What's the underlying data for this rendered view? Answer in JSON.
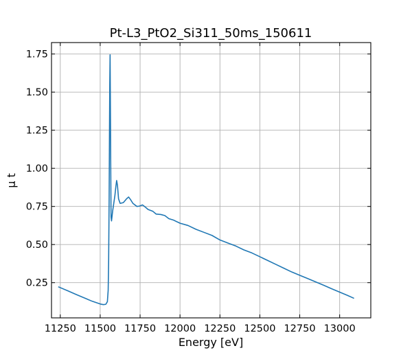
{
  "chart_data": {
    "type": "line",
    "title": "Pt-L3_PtO2_Si311_50ms_150611",
    "xlabel": "Energy [eV]",
    "ylabel": "μ t",
    "xlim": [
      11195,
      13195
    ],
    "ylim": [
      0.019,
      1.825
    ],
    "x_ticks": [
      11250,
      11500,
      11750,
      12000,
      12250,
      12500,
      12750,
      13000
    ],
    "x_tick_labels": [
      "11250",
      "11500",
      "11750",
      "12000",
      "12250",
      "12500",
      "12750",
      "13000"
    ],
    "y_ticks": [
      0.25,
      0.5,
      0.75,
      1.0,
      1.25,
      1.5,
      1.75
    ],
    "y_tick_labels": [
      "0.25",
      "0.50",
      "0.75",
      "1.00",
      "1.25",
      "1.50",
      "1.75"
    ],
    "grid": true,
    "tick_direction": "in",
    "series": [
      {
        "color": "#1f77b4",
        "points": [
          [
            11237,
            0.223
          ],
          [
            11300,
            0.195
          ],
          [
            11350,
            0.172
          ],
          [
            11400,
            0.15
          ],
          [
            11450,
            0.128
          ],
          [
            11500,
            0.11
          ],
          [
            11520,
            0.106
          ],
          [
            11535,
            0.108
          ],
          [
            11545,
            0.125
          ],
          [
            11550,
            0.2
          ],
          [
            11553,
            0.4
          ],
          [
            11556,
            0.8
          ],
          [
            11558,
            1.2
          ],
          [
            11560,
            1.55
          ],
          [
            11562,
            1.745
          ],
          [
            11565,
            1.2
          ],
          [
            11568,
            0.68
          ],
          [
            11571,
            0.655
          ],
          [
            11578,
            0.72
          ],
          [
            11585,
            0.77
          ],
          [
            11592,
            0.82
          ],
          [
            11598,
            0.88
          ],
          [
            11603,
            0.92
          ],
          [
            11608,
            0.89
          ],
          [
            11615,
            0.8
          ],
          [
            11625,
            0.77
          ],
          [
            11645,
            0.775
          ],
          [
            11665,
            0.8
          ],
          [
            11678,
            0.812
          ],
          [
            11690,
            0.795
          ],
          [
            11705,
            0.77
          ],
          [
            11730,
            0.75
          ],
          [
            11745,
            0.752
          ],
          [
            11765,
            0.76
          ],
          [
            11780,
            0.748
          ],
          [
            11800,
            0.73
          ],
          [
            11830,
            0.718
          ],
          [
            11850,
            0.7
          ],
          [
            11880,
            0.697
          ],
          [
            11905,
            0.69
          ],
          [
            11930,
            0.67
          ],
          [
            11960,
            0.66
          ],
          [
            12000,
            0.64
          ],
          [
            12050,
            0.625
          ],
          [
            12100,
            0.6
          ],
          [
            12150,
            0.58
          ],
          [
            12200,
            0.56
          ],
          [
            12250,
            0.53
          ],
          [
            12300,
            0.51
          ],
          [
            12350,
            0.49
          ],
          [
            12400,
            0.465
          ],
          [
            12450,
            0.445
          ],
          [
            12500,
            0.42
          ],
          [
            12550,
            0.395
          ],
          [
            12600,
            0.37
          ],
          [
            12650,
            0.345
          ],
          [
            12700,
            0.32
          ],
          [
            12750,
            0.298
          ],
          [
            12800,
            0.277
          ],
          [
            12850,
            0.255
          ],
          [
            12900,
            0.233
          ],
          [
            12950,
            0.21
          ],
          [
            13000,
            0.188
          ],
          [
            13050,
            0.166
          ],
          [
            13090,
            0.147
          ]
        ]
      }
    ]
  }
}
